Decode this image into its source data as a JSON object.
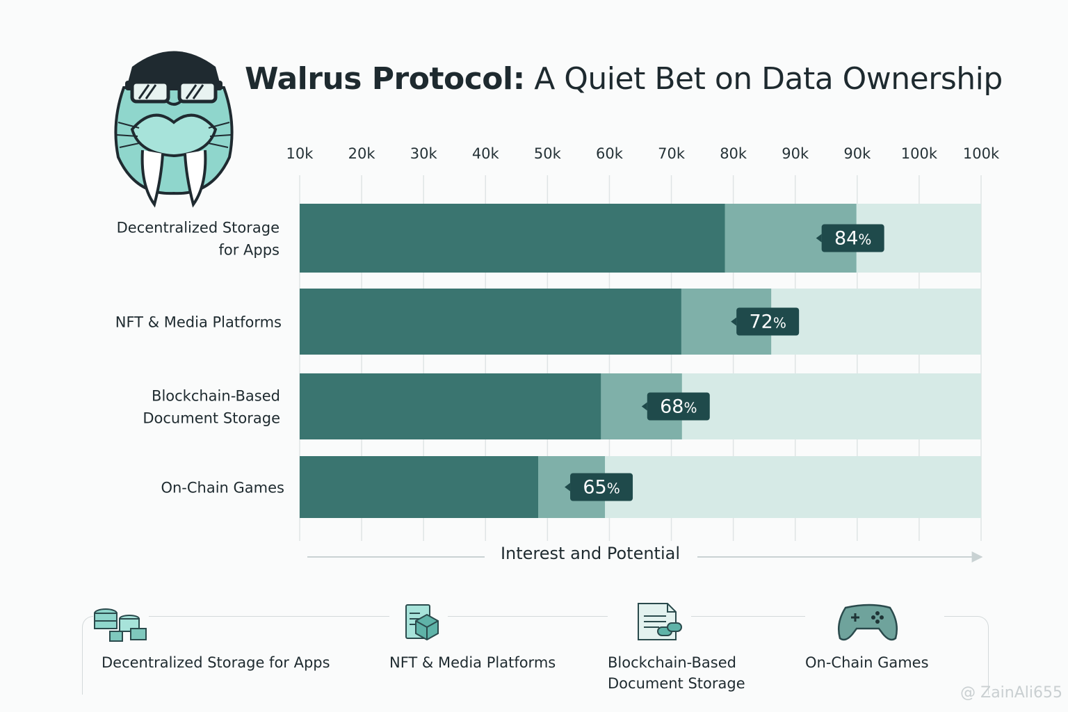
{
  "header": {
    "title_strong": "Walrus Protocol:",
    "title_rest": " A Quiet Bet on Data Ownership"
  },
  "mascot": {
    "icon": "walrus-mascot-icon"
  },
  "chart_data": {
    "type": "bar",
    "orientation": "horizontal",
    "x_tick_labels": [
      "10k",
      "20k",
      "30k",
      "40k",
      "50k",
      "60k",
      "70k",
      "80k",
      "90k",
      "90k",
      "100k",
      "100k"
    ],
    "xlabel": "Interest and Potential",
    "categories": [
      [
        "Decentralized Storage",
        "for Apps"
      ],
      [
        "NFT & Media Platforms"
      ],
      [
        "Blockchain-Based",
        "Document Storage"
      ],
      [
        "On-Chain Games"
      ]
    ],
    "values": [
      84,
      72,
      68,
      65
    ],
    "value_labels": [
      "84",
      "72",
      "68",
      "65"
    ],
    "value_unit": "%",
    "solid_fraction": [
      0.624,
      0.56,
      0.442,
      0.35
    ],
    "mid_fraction": [
      0.817,
      0.692,
      0.561,
      0.448
    ],
    "colors": {
      "bar_dark": "#3a7570",
      "bar_mid": "#7fb0a9",
      "bar_light": "#d6eae6",
      "label_bg": "#1f4a4b"
    }
  },
  "legend": {
    "items": [
      {
        "icon": "database-stack-icon",
        "label": [
          "Decentralized Storage for Apps"
        ]
      },
      {
        "icon": "nft-cube-icon",
        "label": [
          "NFT & Media Platforms"
        ]
      },
      {
        "icon": "chain-document-icon",
        "label": [
          "Blockchain-Based",
          "Document Storage"
        ]
      },
      {
        "icon": "gamepad-icon",
        "label": [
          "On-Chain Games"
        ]
      }
    ]
  },
  "watermark": "@ ZainAli655"
}
